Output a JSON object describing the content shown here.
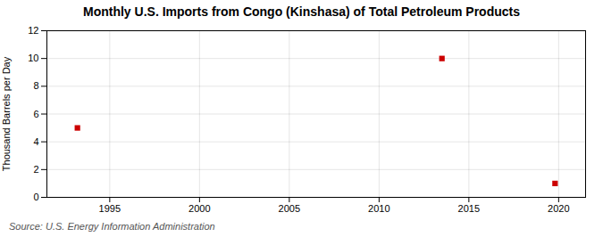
{
  "chart_data": {
    "type": "scatter",
    "title": "Monthly U.S. Imports from Congo (Kinshasa) of Total Petroleum Products",
    "ylabel": "Thousand Barrels per Day",
    "caption": "Source: U.S. Energy Information Administration",
    "x": [
      1993.2,
      2013.5,
      2019.8
    ],
    "values": [
      5.0,
      10.0,
      1.0
    ],
    "color": "#cc0000",
    "marker": "square",
    "xlim": [
      1991.5,
      2021.5
    ],
    "ylim": [
      0,
      12
    ],
    "xticks": [
      1995,
      2000,
      2005,
      2010,
      2015,
      2020
    ],
    "yticks": [
      0,
      2,
      4,
      6,
      8,
      10,
      12
    ],
    "grid": true
  }
}
